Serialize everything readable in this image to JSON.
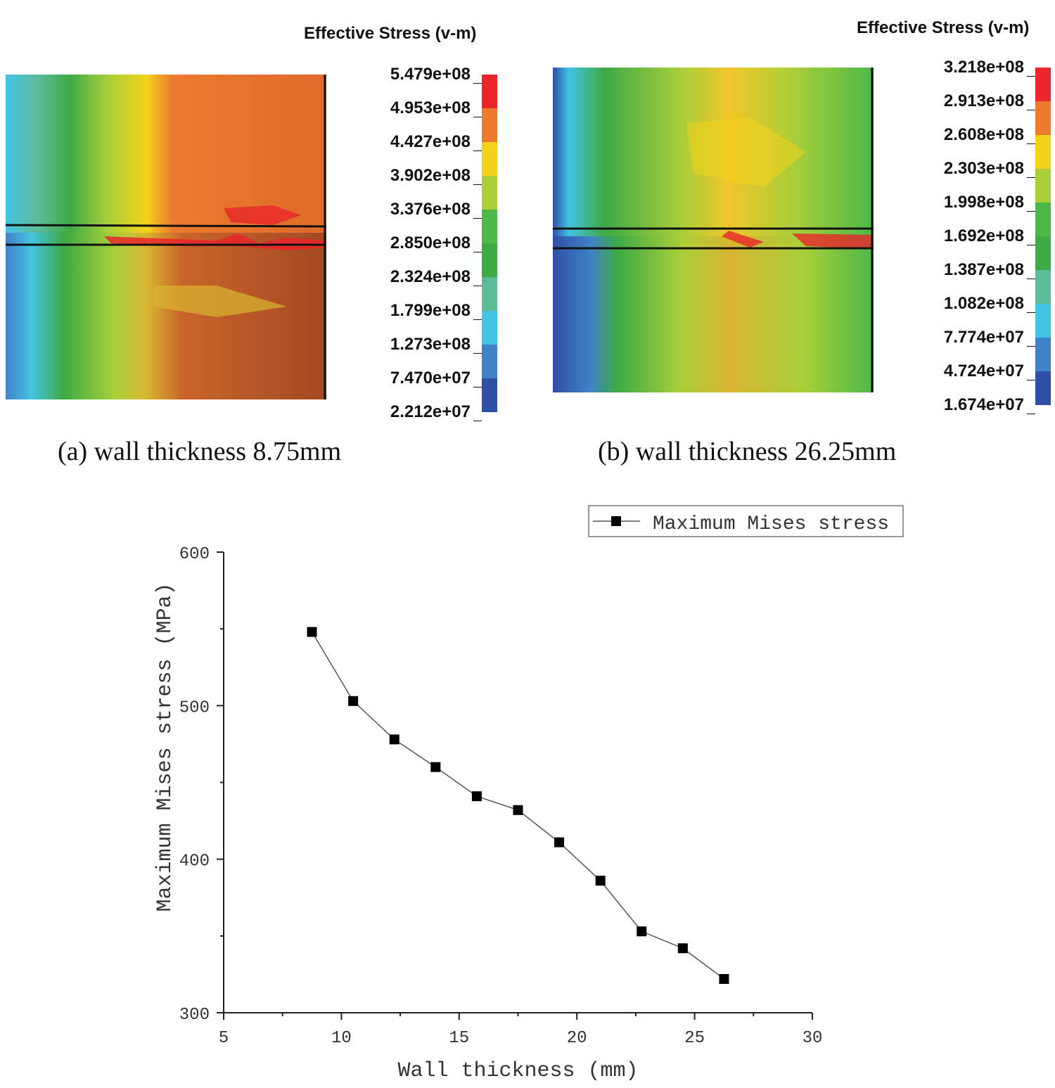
{
  "panel_a": {
    "legend_title": "Effective Stress (v-m)",
    "scale_labels": [
      "5.479e+08",
      "4.953e+08",
      "4.427e+08",
      "3.902e+08",
      "3.376e+08",
      "2.850e+08",
      "2.324e+08",
      "1.799e+08",
      "1.273e+08",
      "7.470e+07",
      "2.212e+07"
    ],
    "caption": "(a) wall thickness 8.75mm"
  },
  "panel_b": {
    "legend_title": "Effective Stress (v-m)",
    "scale_labels": [
      "3.218e+08",
      "2.913e+08",
      "2.608e+08",
      "2.303e+08",
      "1.998e+08",
      "1.692e+08",
      "1.387e+08",
      "1.082e+08",
      "7.774e+07",
      "4.724e+07",
      "1.674e+07"
    ],
    "caption": "(b) wall thickness 26.25mm"
  },
  "colors": {
    "scale": [
      "#e8262b",
      "#ec7a2e",
      "#f3d21a",
      "#a9cf3a",
      "#4db848",
      "#3daa45",
      "#5cbc9a",
      "#45c3e3",
      "#3f83c6",
      "#2f4fa6"
    ]
  },
  "chart_data": {
    "type": "line",
    "xlabel": "Wall thickness (mm)",
    "ylabel": "Maximum Mises stress (MPa)",
    "xlim": [
      5,
      30
    ],
    "ylim": [
      300,
      600
    ],
    "xticks": [
      5,
      10,
      15,
      20,
      25,
      30
    ],
    "yticks": [
      300,
      400,
      500,
      600
    ],
    "legend": {
      "label": "Maximum Mises stress",
      "position": "top-right"
    },
    "series": [
      {
        "name": "Maximum Mises stress",
        "x": [
          8.75,
          10.5,
          12.25,
          14.0,
          15.75,
          17.5,
          19.25,
          21.0,
          22.75,
          24.5,
          26.25
        ],
        "y": [
          548,
          503,
          478,
          460,
          441,
          432,
          411,
          386,
          353,
          342,
          322
        ]
      }
    ]
  }
}
